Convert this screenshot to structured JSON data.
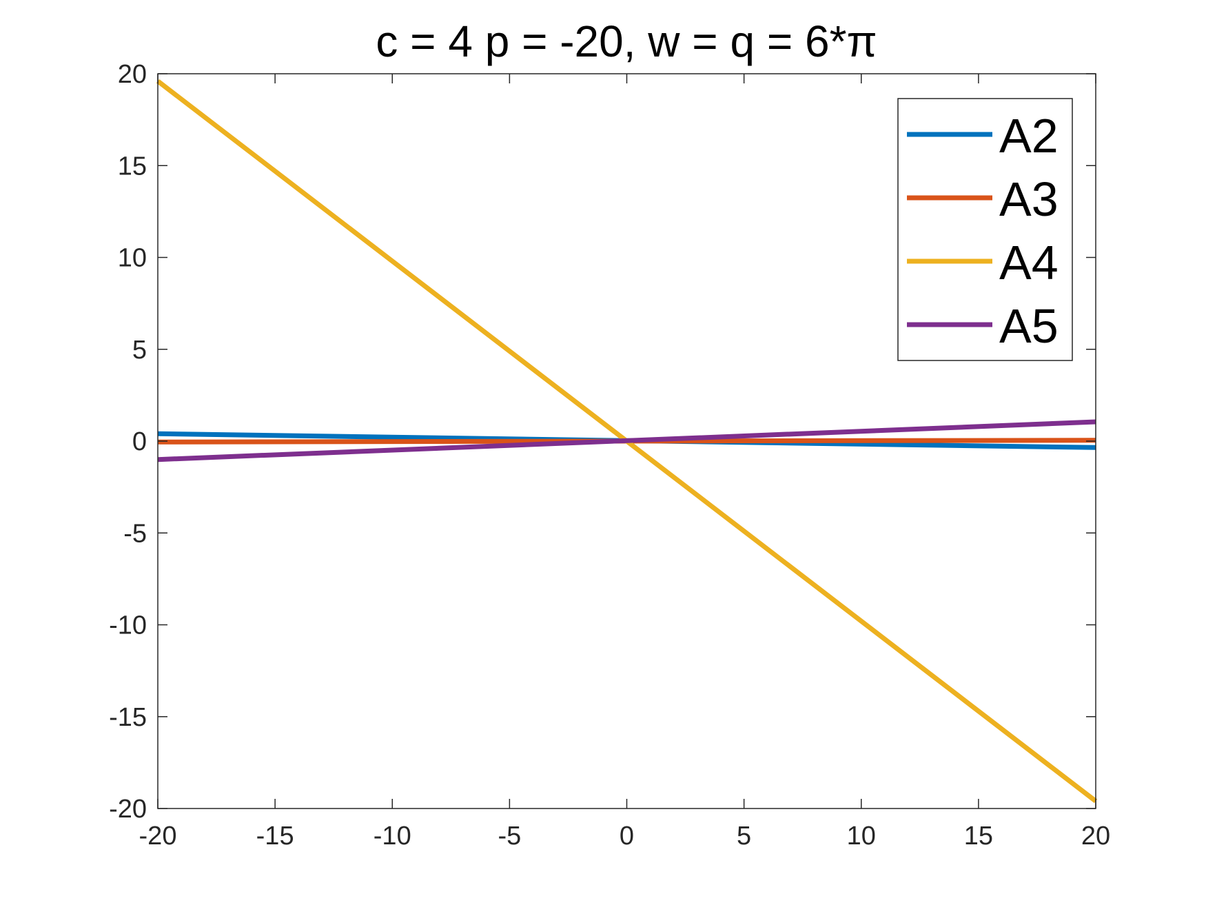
{
  "chart_data": {
    "type": "line",
    "title": "c = 4 p = -20, w = q =  6*π",
    "xlabel": "",
    "ylabel": "",
    "xlim": [
      -20,
      20
    ],
    "ylim": [
      -20,
      20
    ],
    "x_ticks": [
      -20,
      -15,
      -10,
      -5,
      0,
      5,
      10,
      15,
      20
    ],
    "y_ticks": [
      -20,
      -15,
      -10,
      -5,
      0,
      5,
      10,
      15,
      20
    ],
    "x_tick_labels": [
      "-20",
      "-15",
      "-10",
      "-5",
      "0",
      "5",
      "10",
      "15",
      "20"
    ],
    "y_tick_labels": [
      "-20",
      "-15",
      "-10",
      "-5",
      "0",
      "5",
      "10",
      "15",
      "20"
    ],
    "grid": false,
    "legend_position": "top-right",
    "series": [
      {
        "name": "A2",
        "color": "#0072BD",
        "x": [
          -20,
          20
        ],
        "y": [
          0.4,
          -0.35
        ]
      },
      {
        "name": "A3",
        "color": "#D95319",
        "x": [
          -20,
          20
        ],
        "y": [
          -0.05,
          0.05
        ]
      },
      {
        "name": "A4",
        "color": "#EDB120",
        "x": [
          -20,
          20
        ],
        "y": [
          19.6,
          -19.6
        ]
      },
      {
        "name": "A5",
        "color": "#7E2F8E",
        "x": [
          -20,
          20
        ],
        "y": [
          -1.0,
          1.05
        ]
      }
    ]
  }
}
